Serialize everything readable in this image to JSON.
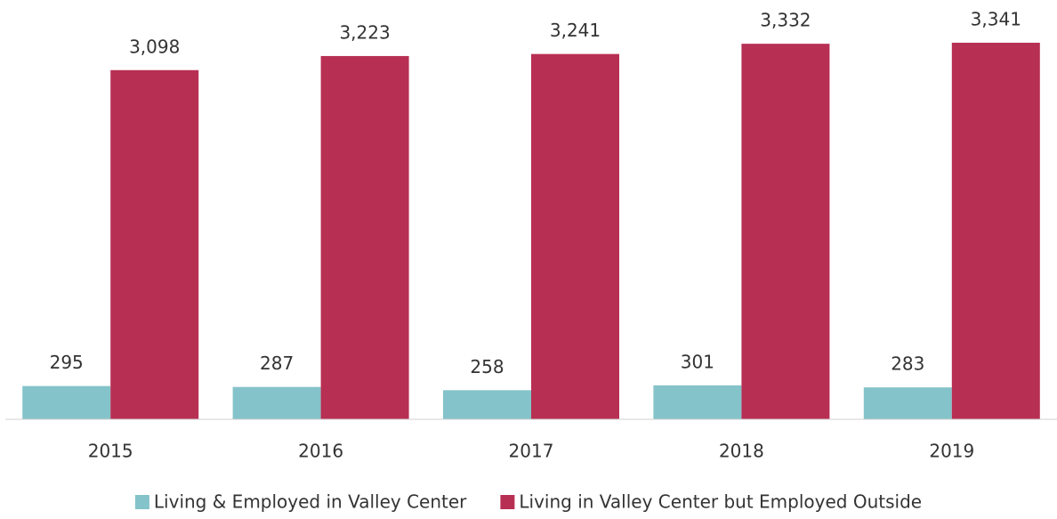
{
  "chart_data": {
    "type": "bar",
    "categories": [
      "2015",
      "2016",
      "2017",
      "2018",
      "2019"
    ],
    "series": [
      {
        "name": "Living & Employed in Valley Center",
        "color": "#84c3c9",
        "values": [
          295,
          287,
          258,
          301,
          283
        ]
      },
      {
        "name": "Living in Valley Center but Employed Outside",
        "color": "#b82f54",
        "values": [
          3098,
          3223,
          3241,
          3332,
          3341
        ],
        "value_labels": [
          "3,098",
          "3,223",
          "3,241",
          "3,332",
          "3,341"
        ]
      }
    ],
    "legend": "bottom"
  }
}
